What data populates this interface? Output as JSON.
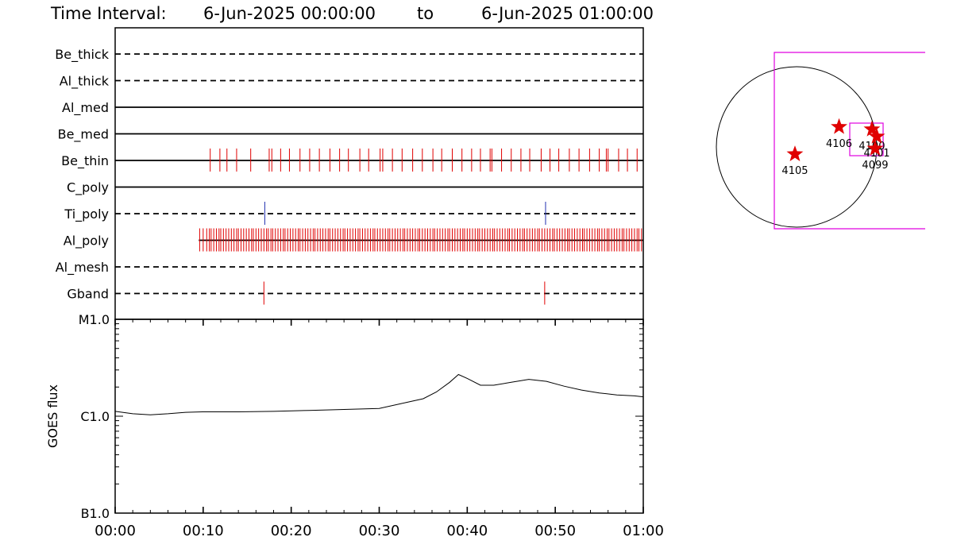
{
  "header": {
    "label": "Time Interval:",
    "start": "6-Jun-2025 00:00:00",
    "to": "to",
    "end": "6-Jun-2025 01:00:00"
  },
  "colors": {
    "event_red": "#e00000",
    "event_blue": "#1f2fb0",
    "fov_magenta": "#e000e0",
    "axis": "#000000"
  },
  "chart_data": [
    {
      "type": "event-timeline",
      "x_range_minutes": [
        0,
        60
      ],
      "channels": [
        {
          "name": "Be_thick",
          "line": "dashed",
          "color": "red",
          "events": []
        },
        {
          "name": "Al_thick",
          "line": "dashed",
          "color": "red",
          "events": []
        },
        {
          "name": "Al_med",
          "line": "solid",
          "color": "red",
          "events": []
        },
        {
          "name": "Be_med",
          "line": "solid",
          "color": "red",
          "events": []
        },
        {
          "name": "Be_thin",
          "line": "solid",
          "color": "red",
          "line_end": 60,
          "events": [
            10.8,
            11.9,
            12.7,
            13.8,
            15.4,
            17.5,
            17.8,
            18.8,
            19.8,
            21.0,
            22.1,
            23.2,
            24.4,
            25.5,
            26.5,
            27.8,
            28.8,
            30.1,
            30.4,
            31.5,
            32.6,
            33.8,
            34.9,
            36.1,
            37.1,
            38.3,
            39.4,
            40.5,
            41.5,
            42.6,
            42.8,
            43.9,
            45.0,
            46.1,
            47.1,
            48.4,
            49.4,
            50.4,
            51.6,
            52.7,
            53.9,
            55.0,
            55.8,
            56.0,
            57.2,
            58.2,
            59.3
          ]
        },
        {
          "name": "C_poly",
          "line": "solid",
          "color": "red",
          "events": []
        },
        {
          "name": "Ti_poly",
          "line": "dashed",
          "color": "blue",
          "line_end": 59.4,
          "events": [
            17.0,
            48.9
          ]
        },
        {
          "name": "Al_poly",
          "line": "solid",
          "color": "red",
          "line_start": 9.5,
          "events": [
            9.6,
            10.0,
            10.4,
            10.7,
            10.9,
            11.2,
            11.5,
            11.8,
            12.0,
            12.3,
            12.6,
            12.9,
            13.2,
            13.5,
            13.8,
            14.0,
            14.3,
            14.6,
            14.9,
            15.2,
            15.5,
            15.7,
            16.0,
            16.3,
            16.6,
            16.9,
            17.2,
            17.4,
            17.7,
            17.9,
            18.2,
            18.5,
            18.8,
            19.1,
            19.3,
            19.6,
            19.9,
            20.2,
            20.5,
            20.8,
            21.0,
            21.3,
            21.6,
            21.9,
            22.2,
            22.5,
            22.7,
            23.0,
            23.3,
            23.6,
            23.9,
            24.2,
            24.4,
            24.7,
            25.0,
            25.3,
            25.6,
            25.9,
            26.1,
            26.4,
            26.7,
            27.0,
            27.3,
            27.6,
            27.8,
            28.1,
            28.4,
            28.7,
            29.0,
            29.3,
            29.5,
            29.8,
            30.1,
            30.4,
            30.7,
            31.0,
            31.2,
            31.5,
            31.8,
            32.1,
            32.4,
            32.7,
            32.9,
            33.2,
            33.5,
            33.8,
            34.1,
            34.4,
            34.6,
            34.9,
            35.2,
            35.5,
            35.8,
            36.1,
            36.3,
            36.6,
            36.9,
            37.2,
            37.5,
            37.8,
            38.0,
            38.3,
            38.6,
            38.9,
            39.2,
            39.5,
            39.7,
            40.0,
            40.3,
            40.6,
            40.9,
            41.2,
            41.4,
            41.7,
            42.0,
            42.3,
            42.6,
            42.9,
            43.1,
            43.4,
            43.7,
            44.0,
            44.3,
            44.6,
            44.8,
            45.1,
            45.4,
            45.7,
            46.0,
            46.3,
            46.5,
            46.8,
            47.1,
            47.4,
            47.7,
            48.0,
            48.2,
            48.5,
            48.8,
            49.1,
            49.4,
            49.7,
            49.9,
            50.2,
            50.5,
            50.8,
            51.1,
            51.4,
            51.6,
            51.9,
            52.2,
            52.5,
            52.8,
            53.1,
            53.3,
            53.6,
            53.9,
            54.2,
            54.5,
            54.8,
            55.0,
            55.3,
            55.6,
            55.9,
            56.1,
            56.4,
            56.7,
            57.0,
            57.3,
            57.6,
            57.8,
            58.1,
            58.4,
            58.7,
            59.0,
            59.3,
            59.5,
            59.8
          ]
        },
        {
          "name": "Al_mesh",
          "line": "dashed",
          "color": "red",
          "events": []
        },
        {
          "name": "Gband",
          "line": "dashed",
          "color": "red",
          "events": [
            16.9,
            48.8
          ]
        }
      ]
    },
    {
      "type": "line",
      "ylabel": "GOES flux",
      "yscale": "log",
      "y_ticks": [
        "M1.0",
        "C1.0",
        "B1.0"
      ],
      "ylim_log10": [
        -7,
        -5
      ],
      "x_ticks": [
        "00:00",
        "00:10",
        "00:20",
        "00:30",
        "00:40",
        "00:50",
        "01:00"
      ],
      "xlim_minutes": [
        0,
        60
      ],
      "series": [
        {
          "x": [
            0,
            2,
            4,
            6,
            8,
            10,
            14,
            18,
            22,
            26,
            30,
            33,
            35,
            36.5,
            38,
            39,
            40,
            41.5,
            43,
            45,
            47,
            49,
            51,
            53,
            55,
            57,
            59,
            60
          ],
          "y": [
            -5.95,
            -5.975,
            -5.985,
            -5.975,
            -5.96,
            -5.955,
            -5.955,
            -5.95,
            -5.94,
            -5.93,
            -5.92,
            -5.86,
            -5.82,
            -5.75,
            -5.65,
            -5.57,
            -5.61,
            -5.68,
            -5.68,
            -5.65,
            -5.62,
            -5.64,
            -5.69,
            -5.73,
            -5.76,
            -5.78,
            -5.79,
            -5.8
          ]
        }
      ]
    },
    {
      "type": "scatter",
      "kind": "solar-disk-map",
      "points": [
        {
          "label": "4106",
          "x": 0.53,
          "y": -0.25
        },
        {
          "label": "4105",
          "x": -0.02,
          "y": 0.09
        },
        {
          "label": "4100",
          "x": 0.94,
          "y": -0.22
        },
        {
          "label": "4101",
          "x": 1.0,
          "y": -0.13
        },
        {
          "label": "4099",
          "x": 0.98,
          "y": 0.02
        }
      ]
    }
  ]
}
